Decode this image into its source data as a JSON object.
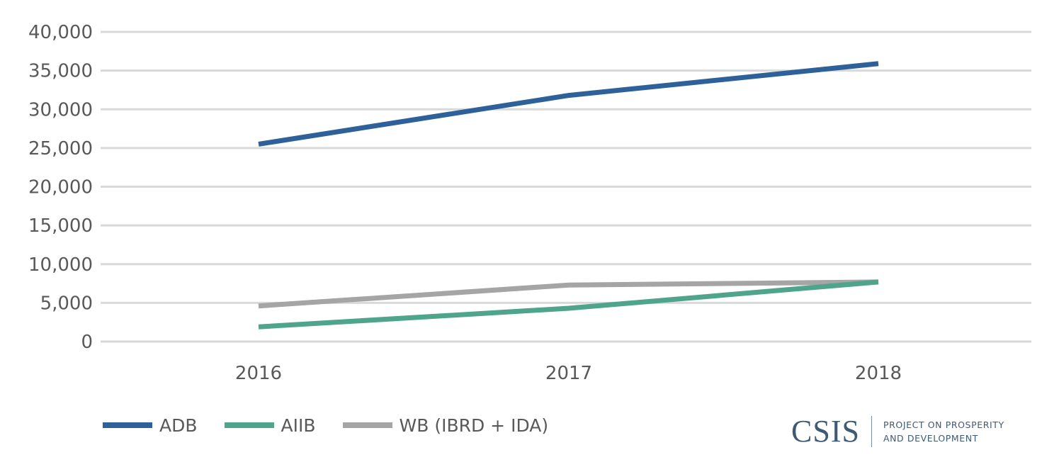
{
  "chart_data": {
    "type": "line",
    "categories": [
      "2016",
      "2017",
      "2018"
    ],
    "series": [
      {
        "name": "ADB",
        "values": [
          25500,
          31800,
          35900
        ],
        "color": "#2e6199"
      },
      {
        "name": "AIIB",
        "values": [
          1900,
          4300,
          7700
        ],
        "color": "#4fa58c"
      },
      {
        "name": "WB (IBRD + IDA)",
        "values": [
          4600,
          7300,
          7700
        ],
        "color": "#a5a5a5"
      }
    ],
    "ylim": [
      0,
      40000
    ],
    "yticks": [
      0,
      5000,
      10000,
      15000,
      20000,
      25000,
      30000,
      35000,
      40000
    ],
    "ytick_labels": [
      "0",
      "5,000",
      "10,000",
      "15,000",
      "20,000",
      "25,000",
      "30,000",
      "35,000",
      "40,000"
    ],
    "grid": true,
    "legend_position": "bottom-left",
    "title": "",
    "xlabel": "",
    "ylabel": ""
  },
  "legend": {
    "items": [
      {
        "label": "ADB",
        "color": "#2e6199"
      },
      {
        "label": "AIIB",
        "color": "#4fa58c"
      },
      {
        "label": "WB (IBRD + IDA)",
        "color": "#a5a5a5"
      }
    ]
  },
  "logo": {
    "wordmark": "CSIS",
    "tagline_line1": "PROJECT ON PROSPERITY",
    "tagline_line2": "AND DEVELOPMENT"
  },
  "colors": {
    "gridline": "#d9d9d9",
    "tick_text": "#595959",
    "brand": "#3e5a74"
  }
}
